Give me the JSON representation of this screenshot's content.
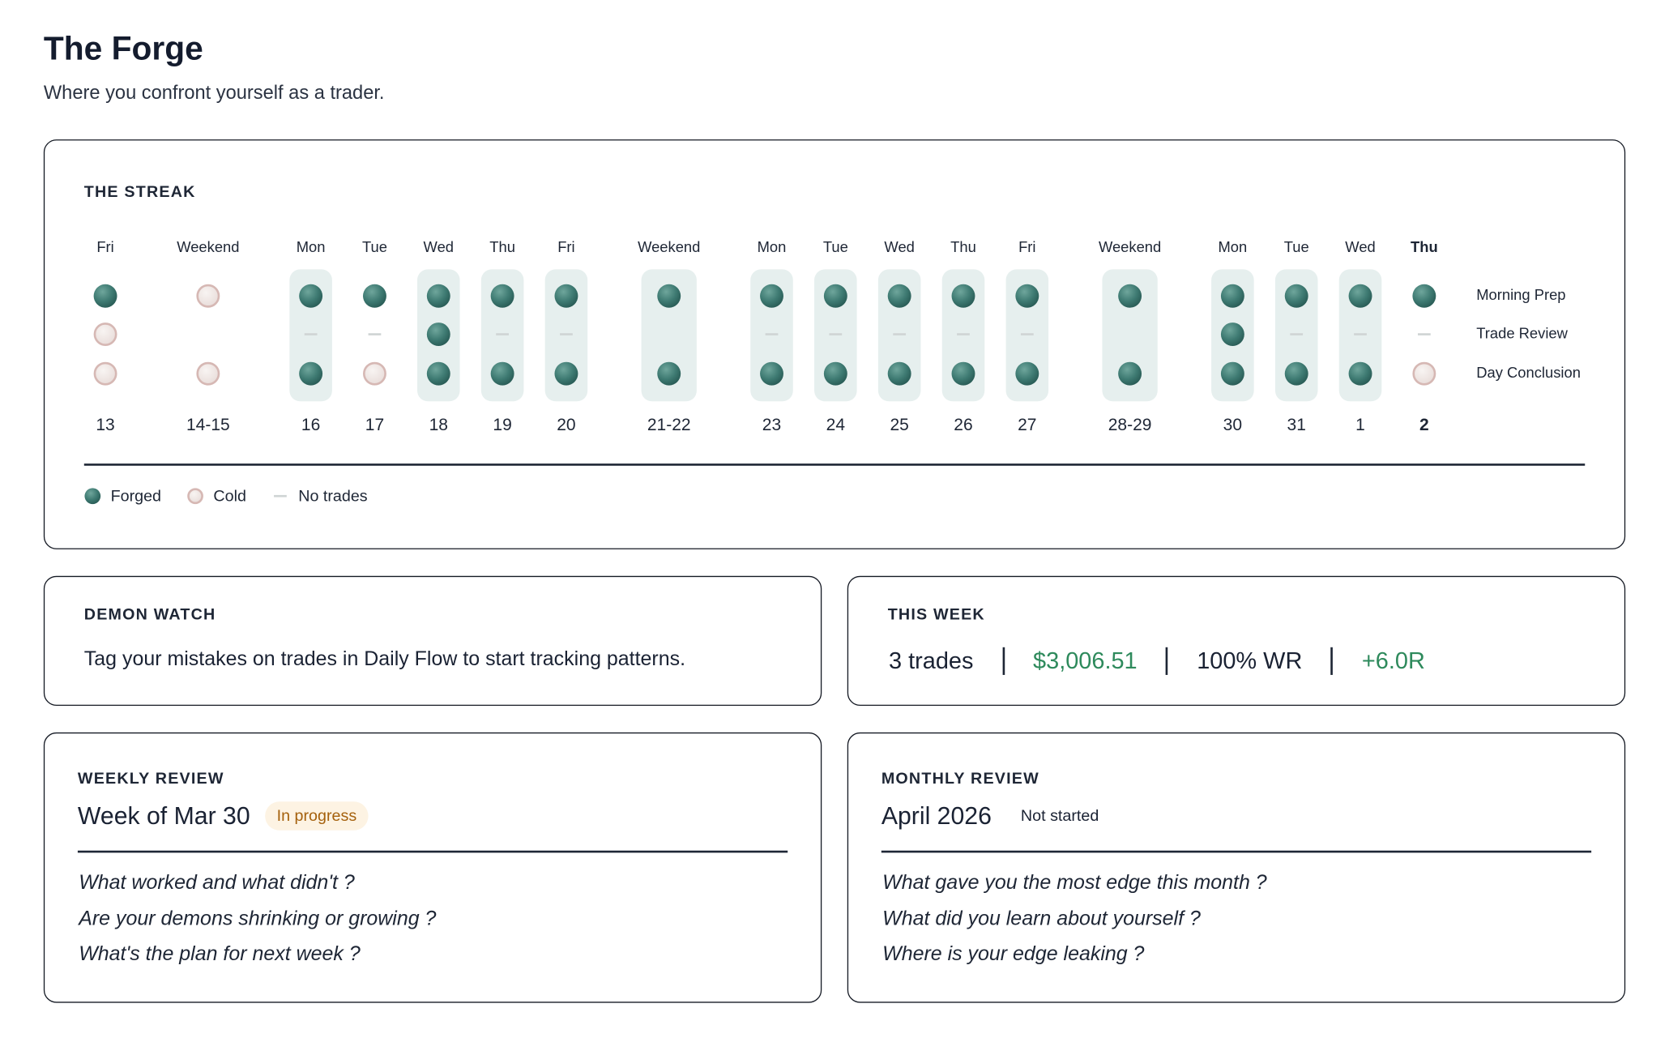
{
  "header": {
    "title": "The Forge",
    "subtitle": "Where you confront yourself as a trader."
  },
  "streak": {
    "title": "THE STREAK",
    "rows": [
      "Morning Prep",
      "Trade Review",
      "Day Conclusion"
    ],
    "columns": [
      {
        "day": "Fri",
        "date": "13",
        "status": [
          "forged",
          "cold",
          "cold"
        ]
      },
      {
        "day": "Weekend",
        "date": "14-15",
        "status": [
          "cold",
          null,
          "cold"
        ]
      },
      {
        "day": "Mon",
        "date": "16",
        "status": [
          "forged",
          "none",
          "forged"
        ]
      },
      {
        "day": "Tue",
        "date": "17",
        "status": [
          "forged",
          "none",
          "cold"
        ]
      },
      {
        "day": "Wed",
        "date": "18",
        "status": [
          "forged",
          "forged",
          "forged"
        ]
      },
      {
        "day": "Thu",
        "date": "19",
        "status": [
          "forged",
          "none",
          "forged"
        ]
      },
      {
        "day": "Fri",
        "date": "20",
        "status": [
          "forged",
          "none",
          "forged"
        ]
      },
      {
        "day": "Weekend",
        "date": "21-22",
        "status": [
          "forged",
          null,
          "forged"
        ]
      },
      {
        "day": "Mon",
        "date": "23",
        "status": [
          "forged",
          "none",
          "forged"
        ]
      },
      {
        "day": "Tue",
        "date": "24",
        "status": [
          "forged",
          "none",
          "forged"
        ]
      },
      {
        "day": "Wed",
        "date": "25",
        "status": [
          "forged",
          "none",
          "forged"
        ]
      },
      {
        "day": "Thu",
        "date": "26",
        "status": [
          "forged",
          "none",
          "forged"
        ]
      },
      {
        "day": "Fri",
        "date": "27",
        "status": [
          "forged",
          "none",
          "forged"
        ]
      },
      {
        "day": "Weekend",
        "date": "28-29",
        "status": [
          "forged",
          null,
          "forged"
        ]
      },
      {
        "day": "Mon",
        "date": "30",
        "status": [
          "forged",
          "forged",
          "forged"
        ]
      },
      {
        "day": "Tue",
        "date": "31",
        "status": [
          "forged",
          "none",
          "forged"
        ]
      },
      {
        "day": "Wed",
        "date": "1",
        "status": [
          "forged",
          "none",
          "forged"
        ]
      },
      {
        "day": "Thu",
        "date": "2",
        "status": [
          "forged",
          "none",
          "cold"
        ],
        "today": true
      }
    ],
    "legend": [
      {
        "label": "Forged",
        "status": "forged"
      },
      {
        "label": "Cold",
        "status": "cold"
      },
      {
        "label": "No trades",
        "status": "none"
      }
    ]
  },
  "demon_watch": {
    "title": "DEMON WATCH",
    "text": "Tag your mistakes on trades in Daily Flow to start tracking patterns."
  },
  "this_week": {
    "title": "THIS WEEK",
    "stats": [
      {
        "text": "3 trades",
        "tone": "neutral"
      },
      {
        "text": "$3,006.51",
        "tone": "positive"
      },
      {
        "text": "100% WR",
        "tone": "neutral"
      },
      {
        "text": "+6.0R",
        "tone": "positive"
      }
    ]
  },
  "weekly_review": {
    "title": "WEEKLY REVIEW",
    "heading": "Week of Mar 30",
    "status": "In progress",
    "prompts": [
      "What worked and what didn't ?",
      "Are your demons shrinking or growing ?",
      "What's the plan for next week ?"
    ]
  },
  "monthly_review": {
    "title": "MONTHLY REVIEW",
    "heading": "April 2026",
    "status": "Not started",
    "prompts": [
      "What gave you the most edge this month ?",
      "What did you learn about yourself ?",
      "Where is your edge leaking ?"
    ]
  }
}
